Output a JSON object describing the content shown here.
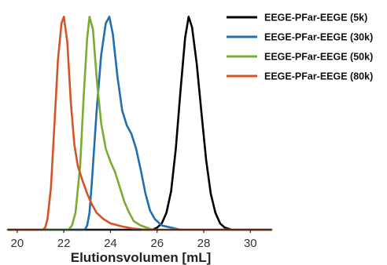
{
  "chart_data": {
    "type": "line",
    "xlabel": "Elutionsvolumen [mL]",
    "ylabel": "",
    "xlim": [
      19.6,
      30.9
    ],
    "ylim": [
      0,
      1.02
    ],
    "x_ticks": [
      20,
      22,
      24,
      26,
      28,
      30
    ],
    "x_tick_labels": [
      "20",
      "22",
      "24",
      "26",
      "28",
      "30"
    ],
    "y_axis_visible": false,
    "grid": false,
    "legend_position": "top-right",
    "series": [
      {
        "name": "EEGE-PFar-EEGE (5k)",
        "color": "#000000",
        "points": [
          [
            19.6,
            0
          ],
          [
            25.8,
            0
          ],
          [
            26.0,
            0.01
          ],
          [
            26.2,
            0.03
          ],
          [
            26.4,
            0.08
          ],
          [
            26.6,
            0.18
          ],
          [
            26.8,
            0.38
          ],
          [
            27.0,
            0.65
          ],
          [
            27.2,
            0.9
          ],
          [
            27.35,
            1.0
          ],
          [
            27.5,
            0.95
          ],
          [
            27.7,
            0.78
          ],
          [
            27.9,
            0.55
          ],
          [
            28.1,
            0.33
          ],
          [
            28.3,
            0.17
          ],
          [
            28.5,
            0.08
          ],
          [
            28.7,
            0.03
          ],
          [
            28.9,
            0.01
          ],
          [
            29.2,
            0
          ],
          [
            30.9,
            0
          ]
        ]
      },
      {
        "name": "EEGE-PFar-EEGE (30k)",
        "color": "#1f6fb2",
        "points": [
          [
            19.6,
            0
          ],
          [
            22.9,
            0
          ],
          [
            23.0,
            0.02
          ],
          [
            23.1,
            0.08
          ],
          [
            23.2,
            0.22
          ],
          [
            23.4,
            0.55
          ],
          [
            23.6,
            0.82
          ],
          [
            23.8,
            0.97
          ],
          [
            23.95,
            1.0
          ],
          [
            24.1,
            0.92
          ],
          [
            24.3,
            0.72
          ],
          [
            24.5,
            0.56
          ],
          [
            24.7,
            0.49
          ],
          [
            24.9,
            0.45
          ],
          [
            25.1,
            0.38
          ],
          [
            25.3,
            0.28
          ],
          [
            25.5,
            0.17
          ],
          [
            25.7,
            0.09
          ],
          [
            25.9,
            0.05
          ],
          [
            26.2,
            0.02
          ],
          [
            26.6,
            0.01
          ],
          [
            27.0,
            0
          ],
          [
            30.9,
            0
          ]
        ]
      },
      {
        "name": "EEGE-PFar-EEGE (50k)",
        "color": "#7aab32",
        "points": [
          [
            19.6,
            0
          ],
          [
            22.2,
            0
          ],
          [
            22.35,
            0.02
          ],
          [
            22.5,
            0.08
          ],
          [
            22.7,
            0.3
          ],
          [
            22.85,
            0.62
          ],
          [
            23.0,
            0.9
          ],
          [
            23.1,
            1.0
          ],
          [
            23.25,
            0.94
          ],
          [
            23.4,
            0.72
          ],
          [
            23.6,
            0.5
          ],
          [
            23.8,
            0.38
          ],
          [
            24.0,
            0.32
          ],
          [
            24.2,
            0.27
          ],
          [
            24.4,
            0.2
          ],
          [
            24.6,
            0.13
          ],
          [
            24.8,
            0.08
          ],
          [
            25.0,
            0.04
          ],
          [
            25.3,
            0.02
          ],
          [
            25.8,
            0
          ],
          [
            30.9,
            0
          ]
        ]
      },
      {
        "name": "EEGE-PFar-EEGE (80k)",
        "color": "#d4542a",
        "points": [
          [
            19.6,
            0
          ],
          [
            21.1,
            0
          ],
          [
            21.2,
            0.01
          ],
          [
            21.3,
            0.05
          ],
          [
            21.45,
            0.2
          ],
          [
            21.6,
            0.5
          ],
          [
            21.75,
            0.8
          ],
          [
            21.9,
            0.97
          ],
          [
            22.0,
            1.0
          ],
          [
            22.15,
            0.88
          ],
          [
            22.3,
            0.6
          ],
          [
            22.45,
            0.4
          ],
          [
            22.6,
            0.3
          ],
          [
            22.8,
            0.23
          ],
          [
            23.0,
            0.17
          ],
          [
            23.2,
            0.12
          ],
          [
            23.4,
            0.08
          ],
          [
            23.7,
            0.05
          ],
          [
            24.0,
            0.03
          ],
          [
            24.5,
            0.015
          ],
          [
            25.0,
            0.005
          ],
          [
            25.5,
            0
          ],
          [
            30.9,
            0
          ]
        ]
      }
    ]
  }
}
